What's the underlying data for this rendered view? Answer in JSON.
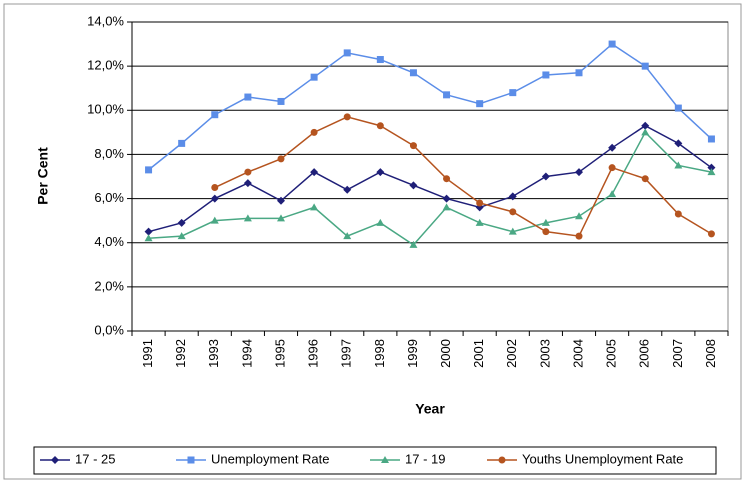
{
  "chart_data": {
    "type": "line",
    "x_label": "Year",
    "y_label": "Per Cent",
    "categories": [
      "1991",
      "1992",
      "1993",
      "1994",
      "1995",
      "1996",
      "1997",
      "1998",
      "1999",
      "2000",
      "2001",
      "2002",
      "2003",
      "2004",
      "2005",
      "2006",
      "2007",
      "2008"
    ],
    "series": [
      {
        "name": "17 - 25",
        "color": "#1f1f78",
        "marker": "diamond",
        "values": [
          4.5,
          4.9,
          6.0,
          6.7,
          5.9,
          7.2,
          6.4,
          7.2,
          6.6,
          6.0,
          5.6,
          6.1,
          7.0,
          7.2,
          8.3,
          9.3,
          8.5,
          7.4
        ]
      },
      {
        "name": "Unemployment Rate",
        "color": "#5b8de8",
        "marker": "square",
        "values": [
          7.3,
          8.5,
          9.8,
          10.6,
          10.4,
          11.5,
          12.6,
          12.3,
          11.7,
          10.7,
          10.3,
          10.8,
          11.6,
          11.7,
          13.0,
          12.0,
          10.1,
          8.7
        ]
      },
      {
        "name": "17 - 19",
        "color": "#4aa884",
        "marker": "triangle",
        "values": [
          4.2,
          4.3,
          5.0,
          5.1,
          5.1,
          5.6,
          4.3,
          4.9,
          3.9,
          5.6,
          4.9,
          4.5,
          4.9,
          5.2,
          6.2,
          9.0,
          7.5,
          7.2
        ]
      },
      {
        "name": "Youths Unemployment Rate",
        "color": "#b5541f",
        "marker": "circle",
        "values": [
          null,
          null,
          6.5,
          7.2,
          7.8,
          9.0,
          9.7,
          9.3,
          8.4,
          6.9,
          5.8,
          5.4,
          4.5,
          4.3,
          7.4,
          6.9,
          5.3,
          4.4
        ]
      }
    ],
    "ylim": [
      0,
      14
    ],
    "yticks": [
      {
        "value": 0,
        "label": "0,0%"
      },
      {
        "value": 2,
        "label": "2,0%"
      },
      {
        "value": 4,
        "label": "4,0%"
      },
      {
        "value": 6,
        "label": "6,0%"
      },
      {
        "value": 8,
        "label": "8,0%"
      },
      {
        "value": 10,
        "label": "10,0%"
      },
      {
        "value": 12,
        "label": "12,0%"
      },
      {
        "value": 14,
        "label": "14,0%"
      }
    ],
    "grid": true,
    "legend": "bottom"
  }
}
